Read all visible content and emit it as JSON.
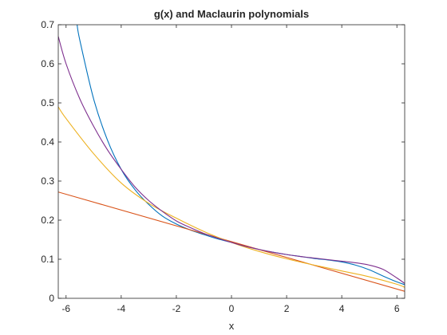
{
  "chart_data": {
    "type": "line",
    "title": "g(x) and Maclaurin polynomials",
    "xlabel": "x",
    "ylabel": "",
    "xlim": [
      -6.2832,
      6.2832
    ],
    "ylim": [
      0,
      0.7
    ],
    "xticks": [
      -6,
      -4,
      -2,
      0,
      2,
      4,
      6
    ],
    "xtick_labels": [
      "-6",
      "-4",
      "-2",
      "0",
      "2",
      "4",
      "6"
    ],
    "yticks": [
      0,
      0.1,
      0.2,
      0.3,
      0.4,
      0.5,
      0.6,
      0.7
    ],
    "ytick_labels": [
      "0",
      "0.1",
      "0.2",
      "0.3",
      "0.4",
      "0.5",
      "0.6",
      "0.7"
    ],
    "grid": false,
    "box": true,
    "series": [
      {
        "color": "#0072BD",
        "x": [
          -5.6,
          -5.5,
          -5,
          -4.5,
          -4,
          -3.5,
          -3,
          -2.5,
          -2,
          -1.5,
          -1,
          -0.5,
          0,
          0.5,
          1,
          1.5,
          2,
          2.5,
          3,
          3.5,
          4,
          4.5,
          5,
          5.5,
          6,
          6.2832
        ],
        "y": [
          0.7,
          0.66,
          0.51,
          0.405,
          0.33,
          0.278,
          0.24,
          0.21,
          0.19,
          0.175,
          0.163,
          0.152,
          0.143,
          0.134,
          0.125,
          0.118,
          0.112,
          0.107,
          0.102,
          0.098,
          0.093,
          0.085,
          0.073,
          0.057,
          0.042,
          0.035
        ]
      },
      {
        "color": "#D95319",
        "x": [
          -6.2832,
          6.2832
        ],
        "y": [
          0.272,
          0.018
        ]
      },
      {
        "color": "#EDB120",
        "x": [
          -6.2832,
          -6,
          -5,
          -4,
          -3,
          -2,
          -1,
          0,
          1,
          2,
          3,
          4,
          5,
          6,
          6.2832
        ],
        "y": [
          0.49,
          0.46,
          0.37,
          0.295,
          0.243,
          0.205,
          0.171,
          0.143,
          0.12,
          0.101,
          0.085,
          0.07,
          0.055,
          0.036,
          0.028
        ]
      },
      {
        "color": "#7E2F8E",
        "x": [
          -6.2832,
          -6,
          -5.5,
          -5,
          -4.5,
          -4,
          -3.5,
          -3,
          -2.5,
          -2,
          -1.5,
          -1,
          -0.5,
          0,
          0.5,
          1,
          1.5,
          2,
          2.5,
          3,
          3.5,
          4,
          4.5,
          5,
          5.5,
          6,
          6.2832
        ],
        "y": [
          0.67,
          0.6,
          0.51,
          0.44,
          0.38,
          0.33,
          0.285,
          0.25,
          0.222,
          0.198,
          0.181,
          0.166,
          0.154,
          0.143,
          0.133,
          0.125,
          0.118,
          0.112,
          0.107,
          0.103,
          0.099,
          0.095,
          0.091,
          0.085,
          0.074,
          0.052,
          0.038
        ]
      }
    ]
  }
}
